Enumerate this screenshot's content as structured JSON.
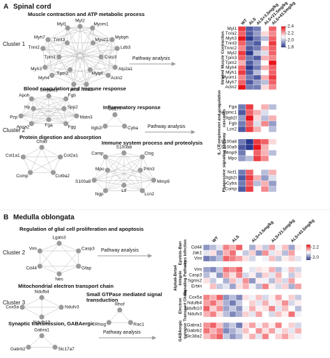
{
  "colormap": [
    "#2b3a8f",
    "#ffffff",
    "#e8141c"
  ],
  "panel_a": {
    "letter": "A",
    "title": "Spinal cord",
    "cluster_labels": [
      "Cluster 1",
      "Cluster 2"
    ],
    "pathway_labels": [
      "Pathway analysis",
      "Pathway analysis"
    ],
    "networks": [
      {
        "title": "Muscle contraction and ATP metabolic process",
        "nodes": [
          "Myl2",
          "Myom1",
          "Myoz1",
          "Mybph",
          "Ldb3",
          "Csrp3",
          "Atp2a1",
          "Actn2",
          "Mylpf",
          "Tnnc2",
          "Tpm3",
          "Tpm2",
          "Myh4",
          "Myh3",
          "Tpm1",
          "Tnni2",
          "Myh7",
          "Tnnt3",
          "Myl1"
        ]
      },
      {
        "title": "Blood coagulation and immune response",
        "nodes": [
          "Serpinc1",
          "Fgb",
          "Spp2",
          "Matn3",
          "Fgg",
          "Fga",
          "Apoa2",
          "Pzp",
          "Hp",
          "Apoh"
        ]
      },
      {
        "title": "Protein digestion and absorption",
        "nodes": [
          "Chad",
          "Col2a1",
          "Col9a2",
          "Comp",
          "Col1a1"
        ]
      },
      {
        "title": "Inflammatory response",
        "nodes": [
          "Cd177",
          "Cyba",
          "Itgb2l"
        ]
      },
      {
        "title": "Immune system process and proteolysis",
        "nodes": [
          "S100a8",
          "Ctsg",
          "Prtn3",
          "Mmp9",
          "Lcn2",
          "Ltf",
          "Ngp",
          "S100a9",
          "Mpo",
          "Camp"
        ]
      }
    ],
    "columns": [
      "WT",
      "ALS",
      "ALS+3.5mg/kg",
      "ALS+21.5mg/kg",
      "ALS+43.5mg/kg"
    ],
    "colorbar": {
      "lim": [
        1.8,
        2.4
      ],
      "ticks": [
        2.4,
        2.2,
        {
          "value": 2,
          "label": "2.0"
        },
        1.8
      ]
    },
    "heatmaps": [
      {
        "name": [
          "Striated Muscle Contraction"
        ],
        "rows": [
          "Myl1",
          "Tnni2",
          "Myh3",
          "Tnnt3",
          "Tnnc2",
          "Myl2",
          "Tpm3",
          "Tpm2",
          "Myh4",
          "Myh1",
          "Myom1",
          "Myh7",
          "Actn2"
        ],
        "values": [
          [
            2.35,
            1.85,
            1.9,
            2.1,
            2.3
          ],
          [
            2.3,
            1.85,
            1.95,
            2.15,
            2.25
          ],
          [
            2.4,
            1.8,
            1.9,
            2.0,
            2.3
          ],
          [
            2.3,
            1.9,
            1.85,
            2.1,
            2.35
          ],
          [
            2.25,
            1.85,
            1.9,
            2.2,
            2.3
          ],
          [
            2.35,
            1.8,
            2.0,
            2.05,
            2.3
          ],
          [
            2.3,
            1.9,
            1.85,
            2.2,
            2.25
          ],
          [
            2.2,
            1.85,
            1.95,
            2.1,
            2.4
          ],
          [
            2.3,
            1.8,
            1.9,
            2.2,
            2.3
          ],
          [
            2.35,
            1.85,
            2.0,
            2.1,
            2.3
          ],
          [
            2.25,
            1.9,
            1.85,
            2.2,
            2.35
          ],
          [
            2.3,
            1.85,
            1.95,
            2.0,
            2.3
          ],
          [
            2.4,
            1.9,
            1.9,
            2.15,
            2.25
          ]
        ]
      },
      {
        "name": [
          "Complement and coagulation",
          "cascades"
        ],
        "rows": [
          "Fga",
          "Serpinc1",
          "Itgb2l",
          "Fgb",
          "Lcn2"
        ],
        "values": [
          [
            1.9,
            2.35,
            2.1,
            2.2,
            2.0
          ],
          [
            1.85,
            2.3,
            2.2,
            2.05,
            2.1
          ],
          [
            1.95,
            2.4,
            2.15,
            2.0,
            2.2
          ],
          [
            1.9,
            2.3,
            2.05,
            2.25,
            1.95
          ],
          [
            1.85,
            2.35,
            2.2,
            2.1,
            2.0
          ]
        ]
      },
      {
        "name": [
          "IL-17",
          "signaling pathway"
        ],
        "rows": [
          "S100a8",
          "S100a9",
          "Mmp9",
          "Mpo"
        ],
        "values": [
          [
            1.9,
            1.8,
            2.35,
            2.3,
            2.15
          ],
          [
            1.85,
            1.8,
            2.4,
            2.2,
            2.1
          ],
          [
            1.9,
            2.1,
            2.3,
            2.2,
            2.0
          ],
          [
            1.95,
            2.0,
            2.35,
            2.25,
            2.1
          ]
        ]
      },
      {
        "name": [
          "Phagosome"
        ],
        "rows": [
          "Ncf1",
          "Itgb2l",
          "Cyba",
          "Comp"
        ],
        "values": [
          [
            1.9,
            2.3,
            2.1,
            2.0,
            2.2
          ],
          [
            1.85,
            2.35,
            2.2,
            1.95,
            2.05
          ],
          [
            1.9,
            2.3,
            2.0,
            2.2,
            1.95
          ],
          [
            1.85,
            2.35,
            2.1,
            2.25,
            2.0
          ]
        ]
      }
    ]
  },
  "panel_b": {
    "letter": "B",
    "title": "Medulla oblongata",
    "cluster_labels": [
      "Cluster 2",
      "Cluster 3"
    ],
    "pathway_labels": [
      "Pathway analysis",
      "Pathway analysis"
    ],
    "networks": [
      {
        "title": "Regulation of glial cell proliferation and apoptosis",
        "nodes": [
          "Lgals3",
          "Casp3",
          "Gfap",
          "Nes",
          "Cd44",
          "Vim"
        ]
      },
      {
        "title": "Mitochondrial electron transport chain",
        "nodes": [
          "Ndufb4",
          "Ndufv3",
          "Ndufb10",
          "Cox5a"
        ]
      },
      {
        "title": [
          "Small GTPase mediated signal",
          "transduction"
        ],
        "nodes": [
          "Rhof",
          "Rac1",
          "Rhog"
        ]
      },
      {
        "title": "Synaptic transmission, GABAergic",
        "nodes": [
          "Gabra1",
          "Slc17a7",
          "Gabrb2"
        ]
      }
    ],
    "columns": [
      "WT",
      "ALS",
      "ALS+3.5mg/kg",
      "ALS+21.5mg/kg",
      "ALS+43.5mg/kg"
    ],
    "colorbar": {
      "lim": [
        1.95,
        2.25
      ],
      "ticks": [
        2.2,
        {
          "value": 2,
          "label": "2.0"
        }
      ]
    },
    "heatmaps": [
      {
        "name": [
          "Epstein-Barr",
          "virus infection"
        ],
        "rows": [
          "Cd44",
          "Jak1",
          "Vim"
        ],
        "values": [
          [
            2.02,
            2.05,
            2.08,
            2.18,
            2.15,
            2.2,
            2.1,
            2.04,
            2.12,
            2.06,
            2.16,
            2.09,
            2.14,
            2.03,
            2.11
          ],
          [
            2.08,
            2.12,
            2.03,
            2.15,
            2.19,
            2.1,
            2.06,
            2.13,
            2.02,
            2.17,
            2.08,
            2.12,
            2.05,
            2.16,
            2.1
          ],
          [
            2.0,
            2.02,
            2.05,
            2.2,
            2.18,
            2.16,
            2.12,
            2.07,
            2.1,
            2.09,
            2.14,
            2.06,
            2.11,
            2.13,
            2.08
          ]
        ]
      },
      {
        "name": [
          "Alpha6-Beta4",
          "Integrin",
          "Signaling Pathway"
        ],
        "rows": [
          "Vim",
          "Casp3",
          "Sgms2",
          "Erbin"
        ],
        "values": [
          [
            2.03,
            2.01,
            2.06,
            2.19,
            2.17,
            2.2,
            2.1,
            2.08,
            2.12,
            2.11,
            2.15,
            2.05,
            2.09,
            2.14,
            2.07
          ],
          [
            2.05,
            2.09,
            2.02,
            2.16,
            2.12,
            2.18,
            2.07,
            2.11,
            2.04,
            2.13,
            2.08,
            2.15,
            2.1,
            2.06,
            2.12
          ],
          [
            2.12,
            2.06,
            2.1,
            2.04,
            2.14,
            2.08,
            2.17,
            2.02,
            2.11,
            2.09,
            2.05,
            2.13,
            2.07,
            2.16,
            2.1
          ],
          [
            2.1,
            2.14,
            2.06,
            2.08,
            2.03,
            2.12,
            2.15,
            2.09,
            2.05,
            2.18,
            2.11,
            2.07,
            2.13,
            2.04,
            2.16
          ]
        ]
      },
      {
        "name": [
          "Electron",
          "Transport Chain"
        ],
        "rows": [
          "Cox5a",
          "Ndufb4",
          "Ndufb10",
          "Ndufv3"
        ],
        "values": [
          [
            2.18,
            2.15,
            2.2,
            2.02,
            2.05,
            2.01,
            2.12,
            2.09,
            2.14,
            2.07,
            2.11,
            2.16,
            2.1,
            2.13,
            2.06
          ],
          [
            2.16,
            2.19,
            2.14,
            2.04,
            2.0,
            2.06,
            2.1,
            2.13,
            2.08,
            2.15,
            2.09,
            2.12,
            2.17,
            2.07,
            2.11
          ],
          [
            2.2,
            2.13,
            2.17,
            2.03,
            2.06,
            2.02,
            2.09,
            2.15,
            2.11,
            2.12,
            2.18,
            2.08,
            2.14,
            2.1,
            2.05
          ],
          [
            2.15,
            2.18,
            2.12,
            2.05,
            2.01,
            2.04,
            2.13,
            2.08,
            2.16,
            2.1,
            2.07,
            2.14,
            2.11,
            2.19,
            2.09
          ]
        ]
      },
      {
        "name": [
          "GABAergic",
          "synapse"
        ],
        "rows": [
          "Gabra1",
          "Gabrb2",
          "Slc38a2"
        ],
        "values": [
          [
            2.17,
            2.2,
            2.14,
            2.03,
            2.06,
            2.0,
            2.12,
            2.16,
            2.09,
            2.15,
            2.11,
            2.18,
            2.1,
            2.13,
            2.07
          ],
          [
            2.19,
            2.15,
            2.18,
            2.01,
            2.04,
            2.07,
            2.14,
            2.1,
            2.17,
            2.12,
            2.16,
            2.09,
            2.13,
            2.08,
            2.15
          ],
          [
            2.14,
            2.17,
            2.2,
            2.06,
            2.02,
            2.05,
            2.11,
            2.15,
            2.08,
            2.18,
            2.1,
            2.13,
            2.16,
            2.12,
            2.09
          ]
        ]
      }
    ]
  }
}
